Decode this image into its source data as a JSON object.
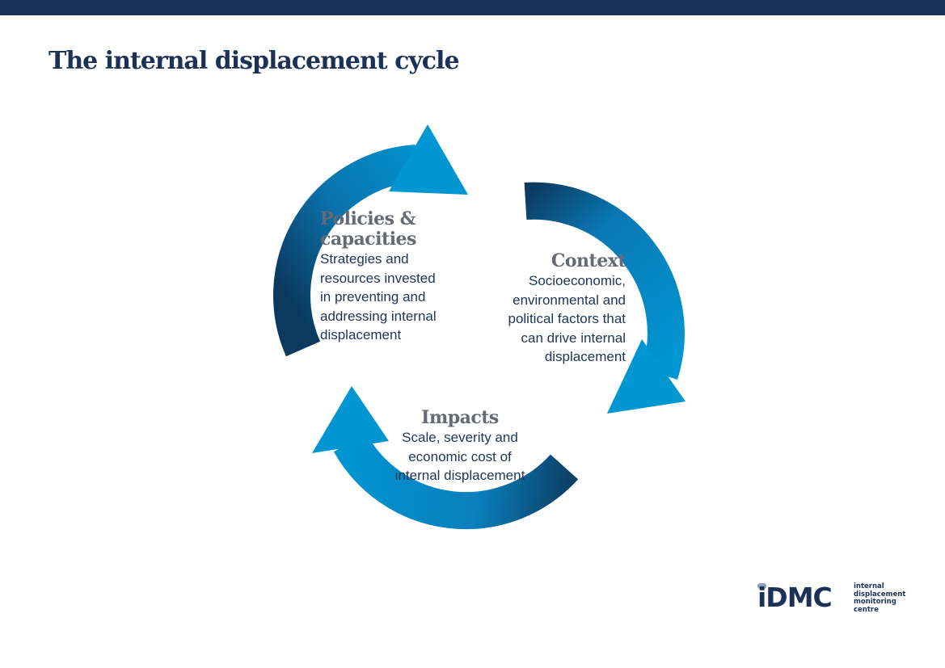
{
  "header": {
    "title": "The internal displacement cycle"
  },
  "colors": {
    "bar": "#1b3157",
    "arrow_light": "#0096d2",
    "arrow_dark": "#0b3a5e",
    "heading": "#666a74",
    "body_text": "#1e3457"
  },
  "stages": {
    "policies": {
      "title_line1": "Policies &",
      "title_line2": "capacities",
      "lines": [
        "Strategies and",
        "resources invested",
        "in preventing and",
        "addressing internal",
        "displacement"
      ]
    },
    "context": {
      "title": "Context",
      "lines": [
        "Socioeconomic,",
        "environmental and",
        "political factors that",
        "can drive internal",
        "displacement"
      ]
    },
    "impacts": {
      "title": "Impacts",
      "lines": [
        "Scale, severity and",
        "economic cost of",
        "internal displacement"
      ]
    }
  },
  "logo": {
    "mark": "iDMC",
    "lines": [
      "internal",
      "displacement",
      "monitoring",
      "centre"
    ]
  }
}
